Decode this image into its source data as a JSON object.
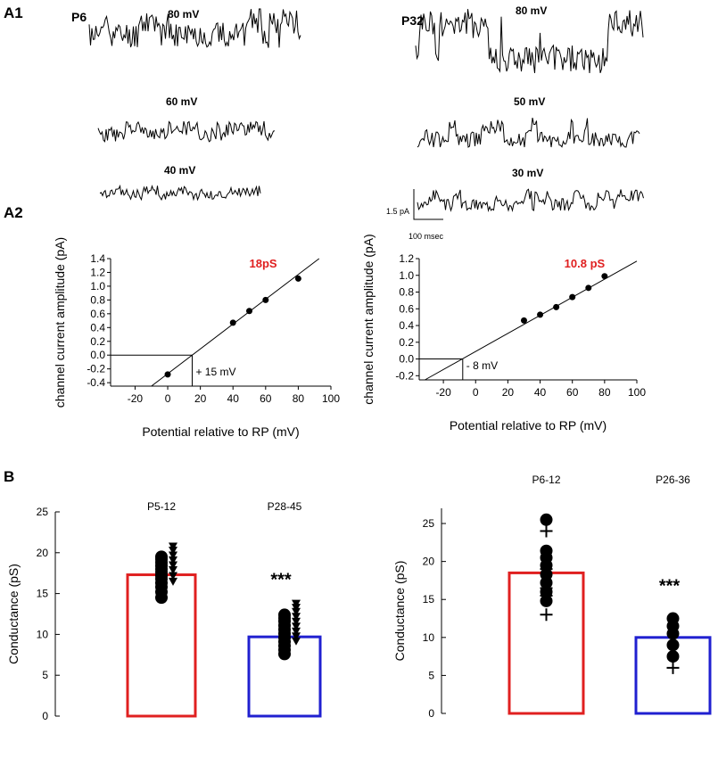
{
  "panels": {
    "a1": "A1",
    "a2": "A2",
    "b": "B"
  },
  "traces": {
    "p6": {
      "label": "P6",
      "rows": [
        {
          "voltage": "80 mV",
          "seed": 11,
          "levels": [
            0.55,
            0.8
          ]
        },
        {
          "voltage": "60 mV",
          "seed": 23,
          "levels": [
            0.3,
            0.5
          ]
        },
        {
          "voltage": "40 mV",
          "seed": 37,
          "levels": [
            0.25,
            0.4
          ]
        }
      ]
    },
    "p32": {
      "label": "P32",
      "rows": [
        {
          "voltage": "80 mV",
          "seed": 41,
          "levels": [
            0.2,
            0.75
          ]
        },
        {
          "voltage": "50 mV",
          "seed": 53,
          "levels": [
            0.2,
            0.6
          ]
        },
        {
          "voltage": "30 mV",
          "seed": 67,
          "levels": [
            0.2,
            0.55
          ]
        }
      ]
    },
    "scale_bar": {
      "current": "1.5 pA",
      "time": "100 msec"
    }
  },
  "chart_data": [
    {
      "id": "iv-p6",
      "type": "scatter",
      "title": "",
      "slope_label": "18pS",
      "xlabel": "Potential relative to RP (mV)",
      "ylabel": "channel current amplitude (pA)",
      "xlim": [
        -35,
        100
      ],
      "ylim": [
        -0.45,
        1.4
      ],
      "xticks": [
        -20,
        0,
        20,
        40,
        60,
        80,
        100
      ],
      "yticks": [
        -0.4,
        -0.2,
        0.0,
        0.2,
        0.4,
        0.6,
        0.8,
        1.0,
        1.2,
        1.4
      ],
      "points": [
        [
          0,
          -0.28
        ],
        [
          40,
          0.47
        ],
        [
          50,
          0.64
        ],
        [
          60,
          0.8
        ],
        [
          80,
          1.11
        ]
      ],
      "fit_line": {
        "slope": 0.018,
        "intercept": -0.27
      },
      "reversal_mV": 15,
      "reversal_label": "+ 15 mV"
    },
    {
      "id": "iv-p32",
      "type": "scatter",
      "title": "",
      "slope_label": "10.8 pS",
      "xlabel": "Potential relative to RP (mV)",
      "ylabel": "channel current amplitude (pA)",
      "xlim": [
        -35,
        100
      ],
      "ylim": [
        -0.25,
        1.2
      ],
      "xticks": [
        -20,
        0,
        20,
        40,
        60,
        80,
        100
      ],
      "yticks": [
        -0.2,
        0.0,
        0.2,
        0.4,
        0.6,
        0.8,
        1.0,
        1.2
      ],
      "points": [
        [
          30,
          0.46
        ],
        [
          40,
          0.53
        ],
        [
          50,
          0.62
        ],
        [
          60,
          0.74
        ],
        [
          70,
          0.85
        ],
        [
          80,
          0.99
        ]
      ],
      "fit_line": {
        "slope": 0.0108,
        "intercept": 0.09
      },
      "reversal_mV": -8,
      "reversal_label": "- 8 mV"
    },
    {
      "id": "cond-left",
      "type": "bar",
      "ylabel": "Conductance (pS)",
      "ylim": [
        0,
        25
      ],
      "yticks": [
        0,
        5,
        10,
        15,
        20,
        25
      ],
      "significance": "***",
      "bars": [
        {
          "name": "P5-12",
          "value": 17.3,
          "color": "#e02020",
          "samples": [
            14.5,
            15.2,
            15.8,
            16.3,
            16.8,
            17.2,
            17.6,
            18.0,
            18.4,
            18.8,
            19.2,
            19.5
          ],
          "triangles": [
            16.5,
            17.2,
            17.9,
            18.5,
            19.1,
            19.7,
            20.3,
            20.8
          ]
        },
        {
          "name": "P28-45",
          "value": 9.7,
          "color": "#2020d0",
          "samples": [
            7.6,
            8.1,
            8.6,
            9.1,
            9.6,
            10.1,
            10.6,
            11.1,
            11.6,
            12.0,
            12.4
          ],
          "triangles": [
            9.2,
            9.8,
            10.4,
            11.0,
            11.6,
            12.2,
            12.8,
            13.3,
            13.8
          ]
        }
      ]
    },
    {
      "id": "cond-right",
      "type": "bar",
      "ylabel": "Conductance (pS)",
      "ylim": [
        0,
        27
      ],
      "yticks": [
        0,
        5,
        10,
        15,
        20,
        25
      ],
      "significance": "***",
      "bars": [
        {
          "name": "P6-12",
          "value": 18.5,
          "color": "#e02020",
          "samples": [
            14.8,
            16.0,
            17.2,
            18.3,
            19.5,
            20.5,
            21.4,
            25.5
          ],
          "crosses": [
            13.0,
            15.5,
            16.5,
            19.0,
            24.0
          ]
        },
        {
          "name": "P26-36",
          "value": 10.0,
          "color": "#2020d0",
          "samples": [
            7.5,
            9.0,
            10.5,
            11.5,
            12.5
          ],
          "crosses": [
            6.0
          ]
        }
      ]
    }
  ]
}
